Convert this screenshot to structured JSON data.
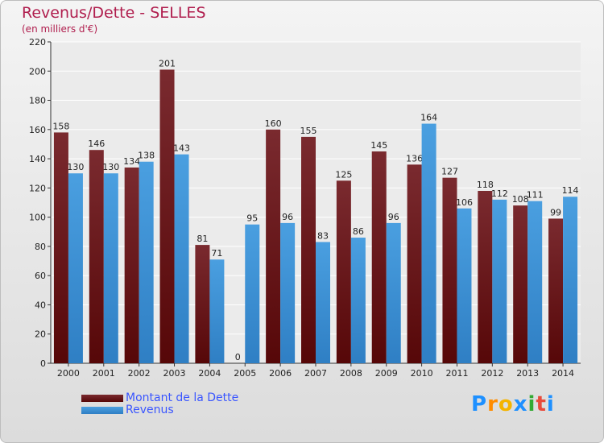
{
  "title": "Revenus/Dette - SELLES",
  "subtitle": "(en milliers d'€)",
  "logo": {
    "letters": [
      "P",
      "r",
      "o",
      "x",
      "i",
      "t",
      "i"
    ],
    "colors": [
      "#1e90ff",
      "#ff8c00",
      "#f4b400",
      "#1e90ff",
      "#33aa33",
      "#e94b3c",
      "#1e90ff"
    ]
  },
  "colors": {
    "series1": "#7a2a2f",
    "series1_dark": "#560708",
    "series2": "#4a9fe0",
    "series2_dark": "#2f7fc4",
    "title": "#b01e4e",
    "legend_text": "#3a56ff"
  },
  "chart_data": {
    "type": "bar",
    "title": "Revenus/Dette - SELLES",
    "ylabel": "(en milliers d'€)",
    "ylim": [
      0,
      220
    ],
    "yticks": [
      0,
      20,
      40,
      60,
      80,
      100,
      120,
      140,
      160,
      180,
      200,
      220
    ],
    "categories": [
      "2000",
      "2001",
      "2002",
      "2003",
      "2004",
      "2005",
      "2006",
      "2007",
      "2008",
      "2009",
      "2010",
      "2011",
      "2012",
      "2013",
      "2014"
    ],
    "series": [
      {
        "name": "Montant de la Dette",
        "values": [
          158,
          146,
          134,
          201,
          81,
          0,
          160,
          155,
          125,
          145,
          136,
          127,
          118,
          108,
          99
        ]
      },
      {
        "name": "Revenus",
        "values": [
          130,
          130,
          138,
          143,
          71,
          95,
          96,
          83,
          86,
          96,
          164,
          106,
          112,
          111,
          114
        ]
      }
    ],
    "grid": true,
    "legend": "bottom-left"
  }
}
